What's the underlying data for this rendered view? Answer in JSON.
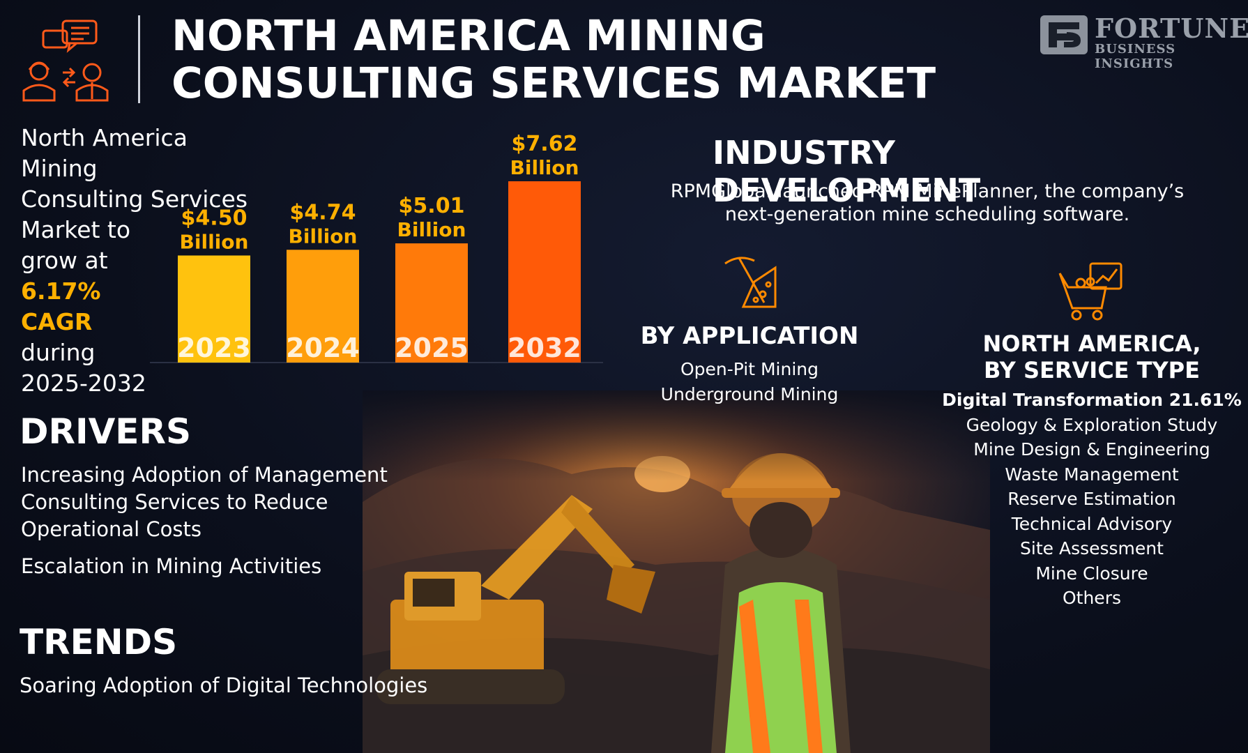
{
  "header": {
    "title_line1": "NORTH AMERICA MINING",
    "title_line2": "CONSULTING SERVICES MARKET",
    "logo_icon": "consultant-miner-icon",
    "brand_main": "FORTUNE",
    "brand_sub": "BUSINESS INSIGHTS"
  },
  "cagr": {
    "lines": [
      "North America Mining",
      "Consulting Services",
      "Market to",
      "grow at"
    ],
    "rate": "6.17%",
    "unit": "CAGR",
    "lines_after": [
      "during",
      "2025-2032"
    ]
  },
  "chart_data": {
    "type": "bar",
    "categories": [
      "2023",
      "2024",
      "2025",
      "2032"
    ],
    "values": [
      4.5,
      4.74,
      5.01,
      7.62
    ],
    "value_labels": [
      [
        "$4.50",
        "Billion"
      ],
      [
        "$4.74",
        "Billion"
      ],
      [
        "$5.01",
        "Billion"
      ],
      [
        "$7.62",
        "Billion"
      ]
    ],
    "colors": [
      "#ffc20e",
      "#ff9e0b",
      "#ff7a0a",
      "#ff5a08"
    ],
    "label_color": "#ffb000",
    "grid": false,
    "legend": "none"
  },
  "drivers": {
    "heading": "DRIVERS",
    "items": [
      [
        "Increasing Adoption of Management",
        "Consulting Services to Reduce",
        "Operational Costs"
      ],
      [
        "Escalation in Mining Activities"
      ]
    ]
  },
  "trends": {
    "heading": "TRENDS",
    "items": [
      "Soaring Adoption of Digital Technologies"
    ]
  },
  "industry": {
    "heading": "INDUSTRY DEVELOPMENT",
    "text_line1": "RPMGlobal launched RPM MinePlanner, the company’s",
    "text_line2": "next-generation mine scheduling software."
  },
  "application": {
    "icon": "pickaxe-icon",
    "heading": "BY APPLICATION",
    "items": [
      "Open-Pit Mining",
      "Underground Mining"
    ]
  },
  "service": {
    "icon": "mining-cart-chart-icon",
    "heading_line1": "NORTH AMERICA,",
    "heading_line2": "BY SERVICE TYPE",
    "items": [
      "Digital Transformation 21.61%",
      "Geology & Exploration Study",
      "Mine Design & Engineering",
      "Waste Management",
      "Reserve Estimation",
      "Technical Advisory",
      "Site Assessment",
      "Mine Closure",
      "Others"
    ]
  },
  "accent_color": "#ff8a00"
}
